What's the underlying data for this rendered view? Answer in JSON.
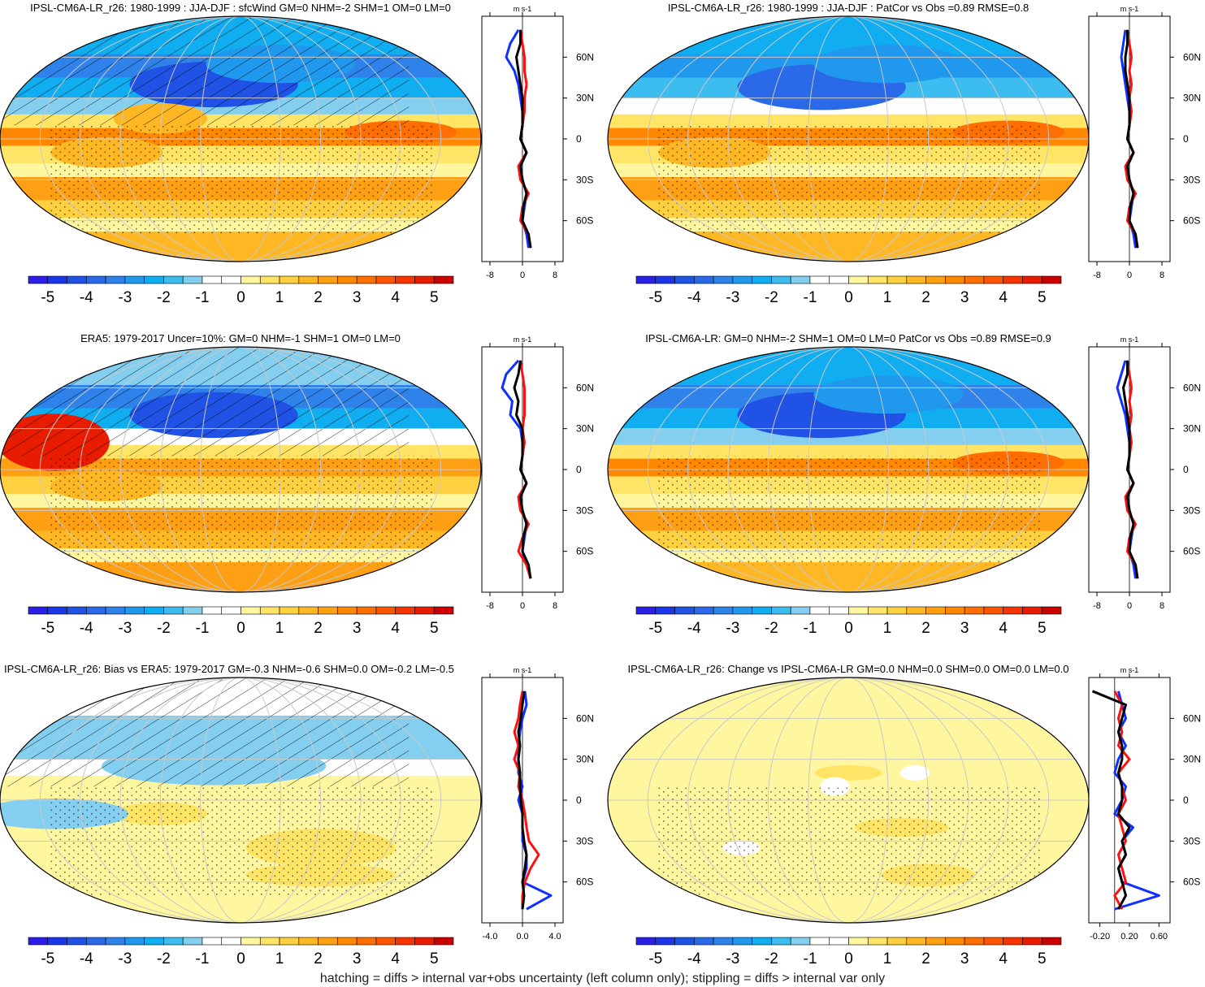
{
  "colorbar": {
    "labels": [
      "-5",
      "-4",
      "-3",
      "-2",
      "-1",
      "0",
      "1",
      "2",
      "3",
      "4",
      "5"
    ],
    "levels": [
      -5.5,
      -5,
      -4.5,
      -4,
      -3.5,
      -3,
      -2.5,
      -2,
      -1.5,
      -1,
      -0.5,
      0,
      0.5,
      1,
      1.5,
      2,
      2.5,
      3,
      3.5,
      4,
      4.5,
      5,
      5.5
    ],
    "colors": [
      "#2b1ee6",
      "#1a36e8",
      "#2052e6",
      "#2a6ae8",
      "#2f82ea",
      "#2098ee",
      "#10aef0",
      "#3cbcef",
      "#84cff0",
      "#ffffff",
      "#ffffff",
      "#fff7a0",
      "#ffe466",
      "#ffd040",
      "#ffb824",
      "#ffa014",
      "#ff8800",
      "#ff6e00",
      "#ff5400",
      "#f53400",
      "#e81c00",
      "#cc0000"
    ]
  },
  "footer": "hatching = diffs > internal var+obs uncertainty (left column only); stippling = diffs > internal var only",
  "series_colors": {
    "model": "#1030ff",
    "obs": "#ff1010",
    "mean": "#000000"
  },
  "chart_data": {
    "type": "line",
    "lat_labels": [
      "60N",
      "30N",
      "0",
      "30S",
      "60S"
    ],
    "units": "m s-1",
    "lats": [
      -80,
      -70,
      -60,
      -50,
      -40,
      -30,
      -20,
      -10,
      0,
      10,
      20,
      30,
      40,
      50,
      60,
      70,
      80
    ],
    "panels": [
      {
        "title": "IPSL-CM6A-LR_r26: 1980-1999 : JJA-DJF : sfcWind GM=0 NHM=-2 SHM=1 OM=0 LM=0",
        "xticks": [
          "-8",
          "0",
          "8"
        ],
        "xtick_values": [
          -8,
          0,
          8
        ],
        "xlim": [
          -10,
          10
        ],
        "series": [
          {
            "name": "blue",
            "values": [
              1.5,
              1,
              0,
              0.5,
              1,
              0,
              -0.5,
              1,
              -0.5,
              0,
              0,
              -0.5,
              -1,
              -2,
              -4,
              -3,
              -1
            ]
          },
          {
            "name": "red",
            "values": [
              2,
              1.5,
              -0.5,
              0,
              1.5,
              -0.5,
              -1,
              1,
              -0.5,
              0,
              0.5,
              0.5,
              1,
              0.5,
              0.5,
              0,
              -0.5
            ]
          },
          {
            "name": "black",
            "values": [
              2,
              1.5,
              0,
              0.2,
              1,
              0,
              -0.5,
              1,
              -0.5,
              0,
              0,
              0,
              -0.5,
              -1,
              -1.5,
              -0.5,
              -0.5
            ]
          }
        ],
        "field": {
          "bands": [
            [
              90,
              62,
              -2.5
            ],
            [
              62,
              45,
              -3.5
            ],
            [
              45,
              30,
              -2.5
            ],
            [
              30,
              18,
              -1.2
            ],
            [
              18,
              8,
              0.5
            ],
            [
              8,
              -5,
              2.5
            ],
            [
              -5,
              -18,
              0.8
            ],
            [
              -18,
              -28,
              0.2
            ],
            [
              -28,
              -45,
              2.2
            ],
            [
              -45,
              -58,
              1.2
            ],
            [
              -58,
              -68,
              0.2
            ],
            [
              -68,
              -90,
              1.5
            ]
          ],
          "blobs": [
            [
              -20,
              40,
              45,
              12,
              -4.5
            ],
            [
              30,
              55,
              40,
              10,
              -3
            ],
            [
              -60,
              15,
              25,
              8,
              1.5
            ],
            [
              120,
              5,
              30,
              6,
              3
            ],
            [
              -100,
              -10,
              30,
              8,
              1.5
            ]
          ]
        },
        "hatched": true
      },
      {
        "title": "IPSL-CM6A-LR_r26: 1980-1999 : JJA-DJF : PatCor vs Obs =0.89 RMSE=0.8",
        "xticks": [
          "-8",
          "0",
          "8"
        ],
        "xtick_values": [
          -8,
          0,
          8
        ],
        "xlim": [
          -10,
          10
        ],
        "series": [
          {
            "name": "blue",
            "values": [
              1.5,
              1,
              0,
              0.5,
              1,
              0,
              -0.5,
              1,
              -0.5,
              0,
              0,
              -0.5,
              -1,
              -1.5,
              -2,
              -1.5,
              -1
            ]
          },
          {
            "name": "red",
            "values": [
              2,
              1.5,
              -0.5,
              0,
              1.5,
              -0.5,
              -1,
              1,
              -0.5,
              0,
              0.5,
              0,
              0.5,
              0,
              0.5,
              0,
              -0.5
            ]
          },
          {
            "name": "black",
            "values": [
              2,
              1.5,
              0,
              0.2,
              1,
              0,
              -0.5,
              1,
              -0.5,
              0,
              0,
              0,
              -0.5,
              -1,
              -1,
              -0.5,
              -0.5
            ]
          }
        ],
        "field": {
          "bands": [
            [
              90,
              62,
              -2.5
            ],
            [
              62,
              45,
              -3
            ],
            [
              45,
              30,
              -2
            ],
            [
              30,
              18,
              -1
            ],
            [
              18,
              8,
              0.5
            ],
            [
              8,
              -5,
              2.5
            ],
            [
              -5,
              -18,
              0.8
            ],
            [
              -18,
              -28,
              0.2
            ],
            [
              -28,
              -45,
              2.2
            ],
            [
              -45,
              -58,
              1.2
            ],
            [
              -58,
              -68,
              0.2
            ],
            [
              -68,
              -90,
              1.5
            ]
          ],
          "blobs": [
            [
              -20,
              38,
              45,
              12,
              -4
            ],
            [
              30,
              55,
              40,
              10,
              -3
            ],
            [
              120,
              5,
              30,
              6,
              3
            ],
            [
              -100,
              -10,
              30,
              8,
              1.5
            ]
          ]
        },
        "hatched": false
      },
      {
        "title": "ERA5: 1979-2017 Uncer=10%: GM=0 NHM=-1 SHM=1 OM=0 LM=0",
        "xticks": [
          "-8",
          "0",
          "8"
        ],
        "xtick_values": [
          -8,
          0,
          8
        ],
        "xlim": [
          -10,
          10
        ],
        "series": [
          {
            "name": "blue",
            "values": [
              2,
              1,
              0,
              0.5,
              1,
              0,
              -0.5,
              1,
              -0.5,
              0,
              0,
              -0.5,
              -3,
              -2.5,
              -5,
              -4,
              -1
            ]
          },
          {
            "name": "red",
            "values": [
              2,
              1,
              -1,
              0,
              1.5,
              -0.5,
              -1,
              1,
              -0.5,
              0,
              0.5,
              0,
              0.5,
              0.5,
              0.5,
              0,
              -0.5
            ]
          },
          {
            "name": "black",
            "values": [
              2,
              1.5,
              0,
              0.2,
              1,
              0,
              -0.5,
              1,
              -0.5,
              0,
              0,
              0,
              -1.5,
              -1,
              -2,
              -1,
              -0.5
            ]
          }
        ],
        "field": {
          "bands": [
            [
              90,
              62,
              -1.2
            ],
            [
              62,
              45,
              -3.5
            ],
            [
              45,
              30,
              -2.5
            ],
            [
              30,
              18,
              -0.8
            ],
            [
              18,
              8,
              0.8
            ],
            [
              8,
              -5,
              2.2
            ],
            [
              -5,
              -18,
              1
            ],
            [
              -18,
              -28,
              0.4
            ],
            [
              -28,
              -45,
              2.2
            ],
            [
              -45,
              -58,
              1.5
            ],
            [
              -58,
              -68,
              0.3
            ],
            [
              -68,
              -90,
              2
            ]
          ],
          "blobs": [
            [
              -140,
              20,
              30,
              15,
              4.5
            ],
            [
              -20,
              40,
              45,
              12,
              -4.5
            ],
            [
              -100,
              -12,
              30,
              8,
              1.5
            ]
          ]
        },
        "hatched": true
      },
      {
        "title": "IPSL-CM6A-LR: GM=0 NHM=-2 SHM=1 OM=0 LM=0 PatCor vs Obs =0.89 RMSE=0.9",
        "xticks": [
          "-8",
          "0",
          "8"
        ],
        "xtick_values": [
          -8,
          0,
          8
        ],
        "xlim": [
          -10,
          10
        ],
        "series": [
          {
            "name": "blue",
            "values": [
              1.5,
              1,
              0,
              0.5,
              1,
              0,
              -0.5,
              1,
              -0.5,
              0,
              0,
              -0.5,
              -1,
              -2,
              -3,
              -2,
              -1
            ]
          },
          {
            "name": "red",
            "values": [
              2,
              1.5,
              -0.5,
              0,
              1.5,
              -0.5,
              -1,
              1,
              -0.5,
              0,
              0.5,
              0,
              0.5,
              0,
              0.5,
              0,
              -0.5
            ]
          },
          {
            "name": "black",
            "values": [
              2,
              1.5,
              0,
              0.2,
              1,
              0,
              -0.5,
              1,
              -0.5,
              0,
              0,
              0,
              -0.5,
              -1,
              -1.5,
              -0.5,
              -0.5
            ]
          }
        ],
        "field": {
          "bands": [
            [
              90,
              62,
              -2.5
            ],
            [
              62,
              45,
              -3.5
            ],
            [
              45,
              30,
              -2.5
            ],
            [
              30,
              18,
              -1.2
            ],
            [
              18,
              8,
              0.5
            ],
            [
              8,
              -5,
              2.5
            ],
            [
              -5,
              -18,
              0.8
            ],
            [
              -18,
              -28,
              0.2
            ],
            [
              -28,
              -45,
              2.2
            ],
            [
              -45,
              -58,
              1.2
            ],
            [
              -58,
              -68,
              0.2
            ],
            [
              -68,
              -90,
              1.5
            ]
          ],
          "blobs": [
            [
              -20,
              40,
              45,
              12,
              -4.5
            ],
            [
              30,
              55,
              40,
              10,
              -3
            ],
            [
              120,
              5,
              30,
              6,
              3
            ]
          ]
        },
        "hatched": false
      },
      {
        "title": "IPSL-CM6A-LR_r26: Bias vs ERA5: 1979-2017 GM=-0.3 NHM=-0.6 SHM=0.0 OM=-0.2 LM=-0.5",
        "xticks": [
          "-4.0",
          "0.0",
          "4.0"
        ],
        "xtick_values": [
          -4,
          0,
          4
        ],
        "xlim": [
          -5,
          5
        ],
        "series": [
          {
            "name": "blue",
            "values": [
              0.5,
              3.5,
              0,
              0.5,
              0.5,
              0,
              0,
              0,
              -0.5,
              0,
              -0.5,
              -0.5,
              -0.5,
              -0.3,
              0,
              0.5,
              0.3
            ]
          },
          {
            "name": "red",
            "values": [
              0,
              0,
              0.3,
              1,
              2,
              0.8,
              0.5,
              0.3,
              0,
              -0.5,
              -0.3,
              -1,
              -0.5,
              -1,
              -0.5,
              -0.3,
              0
            ]
          },
          {
            "name": "black",
            "values": [
              0,
              0.2,
              0,
              0.3,
              0.5,
              0.2,
              0,
              0,
              -0.2,
              -0.3,
              -0.3,
              -0.5,
              -0.3,
              -0.5,
              -0.2,
              0,
              0.2
            ]
          }
        ],
        "field": {
          "bands": [
            [
              90,
              62,
              -0.6
            ],
            [
              62,
              45,
              -1.5
            ],
            [
              45,
              30,
              -1.2
            ],
            [
              30,
              18,
              -0.3
            ],
            [
              18,
              -90,
              0
            ]
          ],
          "blobs": [
            [
              -20,
              25,
              60,
              10,
              -1.5
            ],
            [
              60,
              -35,
              40,
              10,
              0.8
            ],
            [
              -60,
              -10,
              25,
              6,
              0.8
            ],
            [
              -140,
              -10,
              40,
              8,
              -1.2
            ],
            [
              60,
              -55,
              40,
              6,
              0.8
            ]
          ]
        },
        "hatched": true
      },
      {
        "title": "IPSL-CM6A-LR_r26: Change vs IPSL-CM6A-LR GM=0.0 NHM=0.0 SHM=0.0 OM=0.0 LM=0.0",
        "xticks": [
          "-0.20",
          "0.20",
          "0.60"
        ],
        "xtick_values": [
          -0.2,
          0.2,
          0.6
        ],
        "xlim": [
          -0.35,
          0.75
        ],
        "series": [
          {
            "name": "blue",
            "values": [
              0,
              0.6,
              0.1,
              0.05,
              0.15,
              0.1,
              0.25,
              0,
              0.1,
              0.15,
              0,
              0.05,
              0.15,
              0.05,
              0.15,
              0.1,
              0.05
            ]
          },
          {
            "name": "red",
            "values": [
              0.1,
              0,
              0.15,
              0.1,
              0.05,
              0.15,
              0.1,
              0.05,
              0.15,
              0.1,
              0.05,
              0.2,
              0.05,
              0.1,
              0.05,
              0.1,
              0
            ]
          },
          {
            "name": "black",
            "values": [
              0.05,
              0.15,
              0.1,
              0.05,
              0.15,
              0.1,
              0.2,
              0.05,
              0.1,
              0.1,
              0.05,
              0.1,
              0.1,
              0.05,
              0.1,
              0.15,
              -0.3
            ]
          }
        ],
        "field": {
          "bands": [
            [
              90,
              -90,
              0
            ]
          ],
          "blobs": [
            [
              0,
              20,
              18,
              4,
              0.8
            ],
            [
              -10,
              10,
              8,
              5,
              -0.8
            ],
            [
              50,
              20,
              8,
              4,
              -0.8
            ],
            [
              40,
              -20,
              25,
              5,
              0.8
            ],
            [
              -80,
              -35,
              10,
              4,
              -0.8
            ],
            [
              60,
              -55,
              25,
              6,
              0.8
            ]
          ]
        },
        "hatched": false
      }
    ]
  }
}
